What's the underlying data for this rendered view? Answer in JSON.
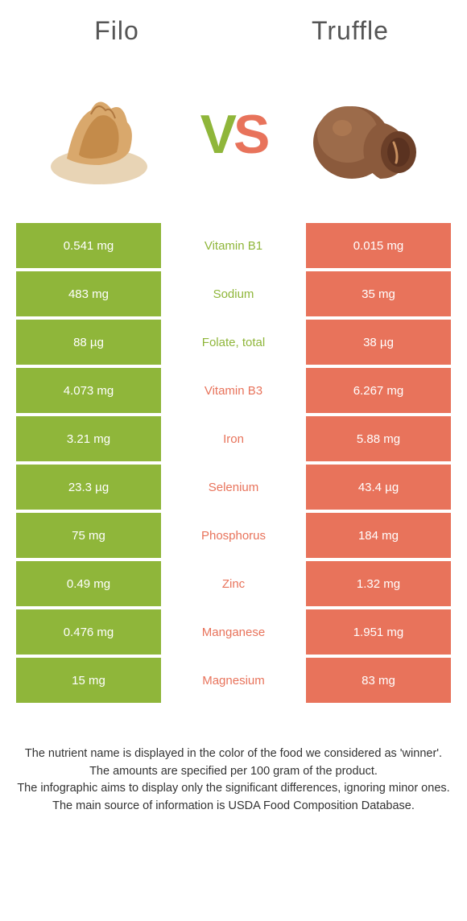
{
  "colors": {
    "left_food": "#8fb63a",
    "right_food": "#e8735b",
    "background": "#ffffff",
    "title_color": "#555555"
  },
  "left": {
    "name": "Filo"
  },
  "right": {
    "name": "Truffle"
  },
  "vs": {
    "v": "V",
    "s": "S"
  },
  "rows": [
    {
      "left_value": "0.541 mg",
      "nutrient": "Vitamin B1",
      "right_value": "0.015 mg",
      "winner": "left"
    },
    {
      "left_value": "483 mg",
      "nutrient": "Sodium",
      "right_value": "35 mg",
      "winner": "left"
    },
    {
      "left_value": "88 µg",
      "nutrient": "Folate, total",
      "right_value": "38 µg",
      "winner": "left"
    },
    {
      "left_value": "4.073 mg",
      "nutrient": "Vitamin B3",
      "right_value": "6.267 mg",
      "winner": "right"
    },
    {
      "left_value": "3.21 mg",
      "nutrient": "Iron",
      "right_value": "5.88 mg",
      "winner": "right"
    },
    {
      "left_value": "23.3 µg",
      "nutrient": "Selenium",
      "right_value": "43.4 µg",
      "winner": "right"
    },
    {
      "left_value": "75 mg",
      "nutrient": "Phosphorus",
      "right_value": "184 mg",
      "winner": "right"
    },
    {
      "left_value": "0.49 mg",
      "nutrient": "Zinc",
      "right_value": "1.32 mg",
      "winner": "right"
    },
    {
      "left_value": "0.476 mg",
      "nutrient": "Manganese",
      "right_value": "1.951 mg",
      "winner": "right"
    },
    {
      "left_value": "15 mg",
      "nutrient": "Magnesium",
      "right_value": "83 mg",
      "winner": "right"
    }
  ],
  "footnotes": [
    "The nutrient name is displayed in the color of the food we considered as 'winner'.",
    "The amounts are specified per 100 gram of the product.",
    "The infographic aims to display only the significant differences, ignoring minor ones.",
    "The main source of information is USDA Food Composition Database."
  ]
}
